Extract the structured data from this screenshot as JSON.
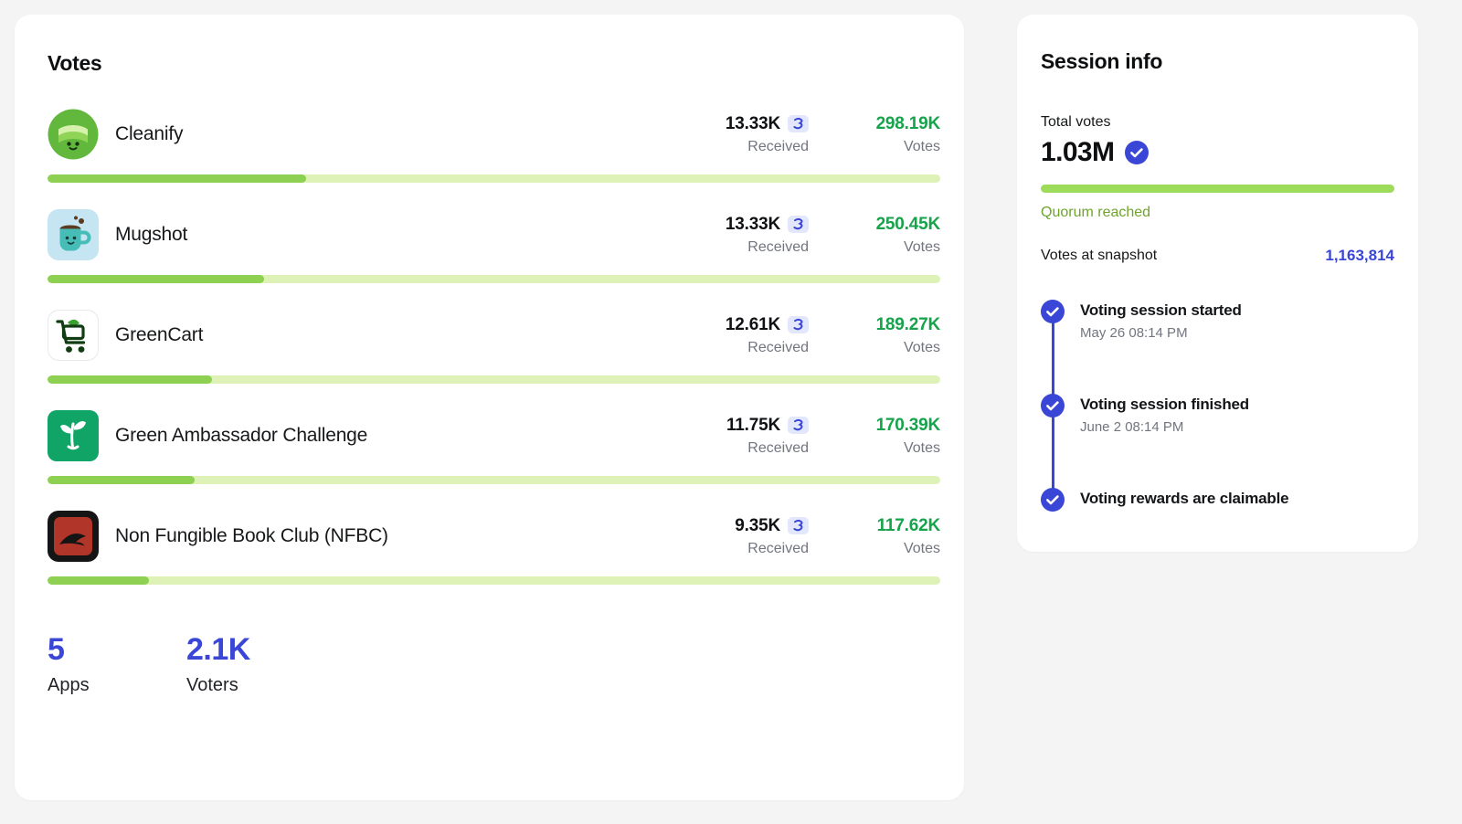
{
  "colors": {
    "background": "#F4F4F5",
    "accent_indigo": "#3A46D6",
    "votes_green": "#17A24C",
    "progress_fill": "#8ED052",
    "progress_track": "#DEF2B7",
    "quorum_green": "#6FA42D"
  },
  "votes_card": {
    "title": "Votes",
    "received_label": "Received",
    "votes_label": "Votes",
    "apps": [
      {
        "name": "Cleanify",
        "icon": "cleanify-logo",
        "received": "13.33K",
        "votes": "298.19K",
        "votes_pct": 29.0
      },
      {
        "name": "Mugshot",
        "icon": "mugshot-logo",
        "received": "13.33K",
        "votes": "250.45K",
        "votes_pct": 24.3
      },
      {
        "name": "GreenCart",
        "icon": "greencart-logo",
        "received": "12.61K",
        "votes": "189.27K",
        "votes_pct": 18.4
      },
      {
        "name": "Green Ambassador Challenge",
        "icon": "green-ambassador-logo",
        "received": "11.75K",
        "votes": "170.39K",
        "votes_pct": 16.5
      },
      {
        "name": "Non Fungible Book Club (NFBC)",
        "icon": "nfbc-logo",
        "received": "9.35K",
        "votes": "117.62K",
        "votes_pct": 11.4
      }
    ],
    "summary": [
      {
        "value": "5",
        "label": "Apps"
      },
      {
        "value": "2.1K",
        "label": "Voters"
      }
    ]
  },
  "session_card": {
    "title": "Session info",
    "total_votes_label": "Total votes",
    "total_votes_value": "1.03M",
    "quorum_status": "Quorum reached",
    "snapshot_label": "Votes at snapshot",
    "snapshot_value": "1,163,814",
    "timeline": [
      {
        "label": "Voting session started",
        "date": "May 26 08:14 PM"
      },
      {
        "label": "Voting session finished",
        "date": "June 2 08:14 PM"
      },
      {
        "label": "Voting rewards are claimable",
        "date": ""
      }
    ]
  }
}
